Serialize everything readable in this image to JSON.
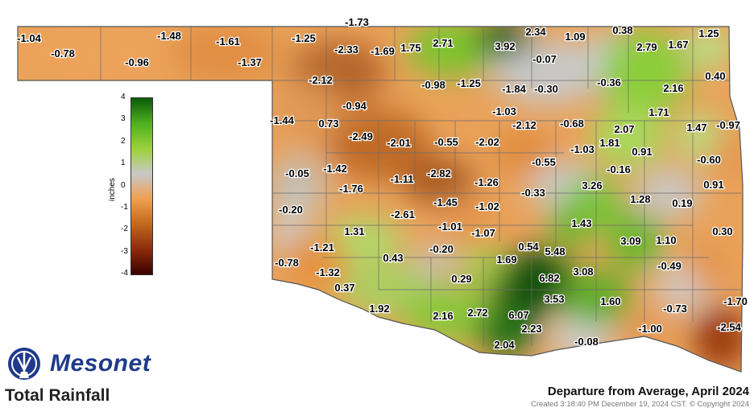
{
  "title": "Departure from Average, April 2024",
  "credit": "Created 3:18:40 PM December 19, 2024 CST. © Copyright 2024",
  "product": "Total Rainfall",
  "brand": "Mesonet",
  "colorbar": {
    "unit": "inches",
    "ticks": [
      "4",
      "3",
      "2",
      "1",
      "0",
      "-1",
      "-2",
      "-3",
      "-4"
    ],
    "range": [
      -4,
      4
    ],
    "colors": [
      "#3b0000",
      "#8b2a0a",
      "#c46a1e",
      "#f0a050",
      "#c8c8c8",
      "#9ed23c",
      "#4caf1e",
      "#0a5a0a"
    ]
  },
  "values": [
    {
      "t": "-1.04"
    },
    {
      "t": "-0.78"
    },
    {
      "t": "-0.96"
    },
    {
      "t": "-1.48"
    },
    {
      "t": "-1.61"
    },
    {
      "t": "-1.37"
    },
    {
      "t": "-1.25"
    },
    {
      "t": "-1.73"
    },
    {
      "t": "-2.33"
    },
    {
      "t": "-1.69"
    },
    {
      "t": "1.75"
    },
    {
      "t": "2.71"
    },
    {
      "t": "3.92"
    },
    {
      "t": "2.34"
    },
    {
      "t": "1.09"
    },
    {
      "t": "0.38"
    },
    {
      "t": "1.25"
    },
    {
      "t": "2.79"
    },
    {
      "t": "1.67"
    },
    {
      "t": "-0.07"
    },
    {
      "t": "-2.12"
    },
    {
      "t": "-0.98"
    },
    {
      "t": "-1.25"
    },
    {
      "t": "-1.84"
    },
    {
      "t": "-0.30"
    },
    {
      "t": "-0.36"
    },
    {
      "t": "2.16"
    },
    {
      "t": "0.40"
    },
    {
      "t": "-0.94"
    },
    {
      "t": "-1.44"
    },
    {
      "t": "0.73"
    },
    {
      "t": "-1.03"
    },
    {
      "t": "-2.12"
    },
    {
      "t": "-0.68"
    },
    {
      "t": "1.71"
    },
    {
      "t": "2.07"
    },
    {
      "t": "1.47"
    },
    {
      "t": "-0.97"
    },
    {
      "t": "-2.49"
    },
    {
      "t": "-2.01"
    },
    {
      "t": "-0.55"
    },
    {
      "t": "-2.02"
    },
    {
      "t": "1.81"
    },
    {
      "t": "-1.03"
    },
    {
      "t": "0.91"
    },
    {
      "t": "-0.05"
    },
    {
      "t": "-1.42"
    },
    {
      "t": "-2.82"
    },
    {
      "t": "-0.55"
    },
    {
      "t": "-0.16"
    },
    {
      "t": "-0.60"
    },
    {
      "t": "-1.76"
    },
    {
      "t": "-1.11"
    },
    {
      "t": "-1.26"
    },
    {
      "t": "3.26"
    },
    {
      "t": "0.91"
    },
    {
      "t": "-0.33"
    },
    {
      "t": "-0.20"
    },
    {
      "t": "-1.45"
    },
    {
      "t": "-1.02"
    },
    {
      "t": "1.28"
    },
    {
      "t": "0.19"
    },
    {
      "t": "-2.61"
    },
    {
      "t": "-1.01"
    },
    {
      "t": "-1.07"
    },
    {
      "t": "1.43"
    },
    {
      "t": "1.31"
    },
    {
      "t": "0.30"
    },
    {
      "t": "-1.21"
    },
    {
      "t": "3.09"
    },
    {
      "t": "1.10"
    },
    {
      "t": "0.43"
    },
    {
      "t": "-0.20"
    },
    {
      "t": "0.54"
    },
    {
      "t": "5.48"
    },
    {
      "t": "-0.78"
    },
    {
      "t": "1.69"
    },
    {
      "t": "-1.32"
    },
    {
      "t": "3.08"
    },
    {
      "t": "-0.49"
    },
    {
      "t": "0.29"
    },
    {
      "t": "6.82"
    },
    {
      "t": "0.37"
    },
    {
      "t": "3.53"
    },
    {
      "t": "1.60"
    },
    {
      "t": "-1.70"
    },
    {
      "t": "-0.73"
    },
    {
      "t": "1.92"
    },
    {
      "t": "2.72"
    },
    {
      "t": "6.07"
    },
    {
      "t": "2.16"
    },
    {
      "t": "2.23"
    },
    {
      "t": "-1.00"
    },
    {
      "t": "-2.54"
    },
    {
      "t": "-0.08"
    },
    {
      "t": "2.04"
    }
  ]
}
